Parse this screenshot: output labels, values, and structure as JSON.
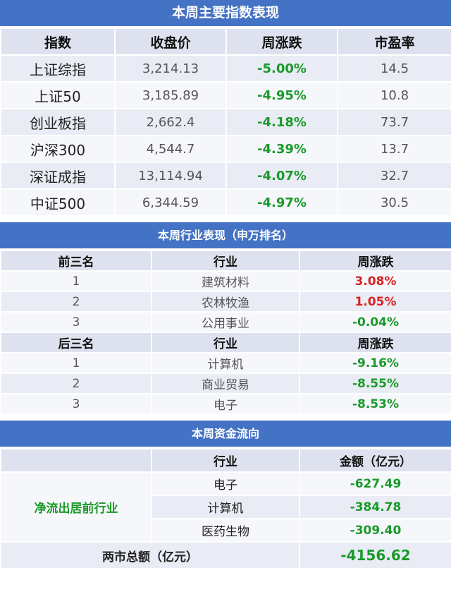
{
  "section1": {
    "title": "本周主要指数表现",
    "headers": [
      "指数",
      "收盘价",
      "周涨跌",
      "市盈率"
    ],
    "rows": [
      {
        "name": "上证综指",
        "close": "3,214.13",
        "change": "-5.00%",
        "pe": "14.5"
      },
      {
        "name": "上证50",
        "close": "3,185.89",
        "change": "-4.95%",
        "pe": "10.8"
      },
      {
        "name": "创业板指",
        "close": "2,662.4",
        "change": "-4.18%",
        "pe": "73.7"
      },
      {
        "name": "沪深300",
        "close": "4,544.7",
        "change": "-4.39%",
        "pe": "13.7"
      },
      {
        "name": "深证成指",
        "close": "13,114.94",
        "change": "-4.07%",
        "pe": "32.7"
      },
      {
        "name": "中证500",
        "close": "6,344.59",
        "change": "-4.97%",
        "pe": "30.5"
      }
    ]
  },
  "section2": {
    "title": "本周行业表现（申万排名）",
    "top_headers": [
      "前三名",
      "行业",
      "周涨跌"
    ],
    "top_rows": [
      {
        "rank": "1",
        "industry": "建筑材料",
        "change": "3.08%"
      },
      {
        "rank": "2",
        "industry": "农林牧渔",
        "change": "1.05%"
      },
      {
        "rank": "3",
        "industry": "公用事业",
        "change": "-0.04%"
      }
    ],
    "bottom_headers": [
      "后三名",
      "行业",
      "周涨跌"
    ],
    "bottom_rows": [
      {
        "rank": "1",
        "industry": "计算机",
        "change": "-9.16%"
      },
      {
        "rank": "2",
        "industry": "商业贸易",
        "change": "-8.55%"
      },
      {
        "rank": "3",
        "industry": "电子",
        "change": "-8.53%"
      }
    ]
  },
  "section3": {
    "title": "本周资金流向",
    "headers": [
      "",
      "行业",
      "金额（亿元）"
    ],
    "group_label": "净流出居前行业",
    "rows": [
      {
        "industry": "电子",
        "amount": "-627.49"
      },
      {
        "industry": "计算机",
        "amount": "-384.78"
      },
      {
        "industry": "医药生物",
        "amount": "-309.40"
      }
    ],
    "total_label": "两市总额（亿元）",
    "total_value": "-4156.62"
  },
  "colors": {
    "header_blue": "#4472c4",
    "positive": "#d92020",
    "negative": "#1a9a2a",
    "row_tint": "#e9ecf4"
  }
}
